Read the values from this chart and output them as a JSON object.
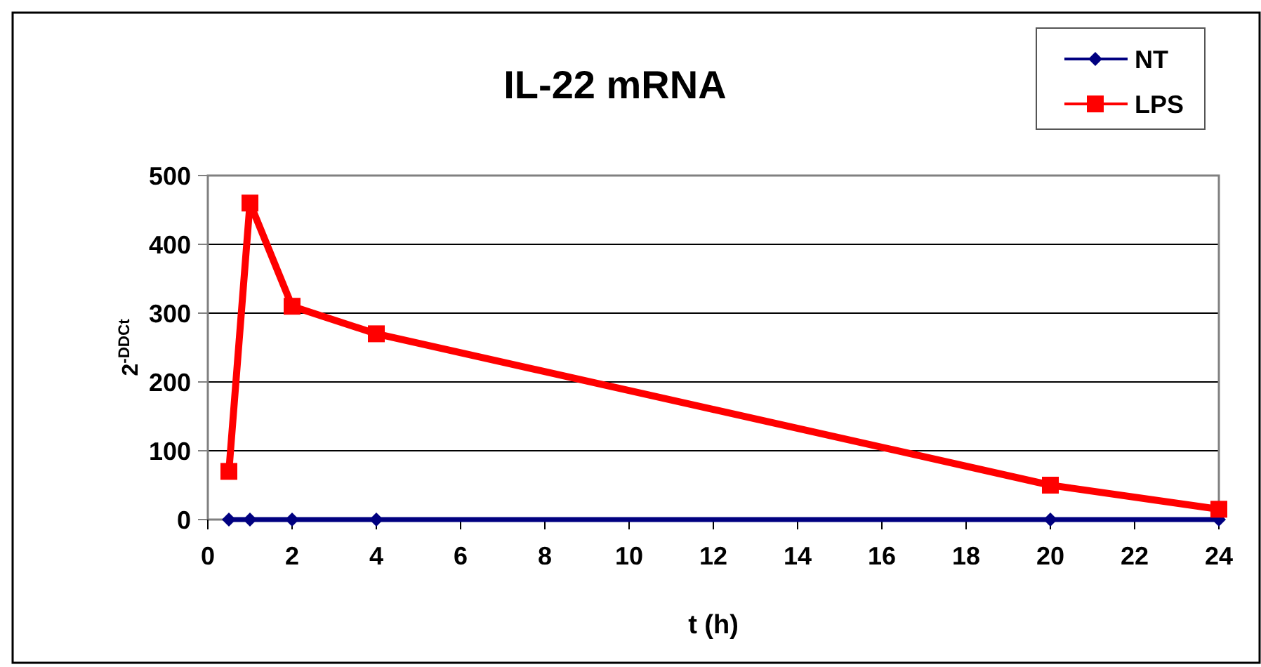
{
  "chart_data": {
    "type": "line",
    "title": "IL-22 mRNA",
    "xlabel": "t (h)",
    "ylabel": "2$^{-DDCt}$",
    "xlim": [
      0,
      24
    ],
    "xticks": [
      0,
      2,
      4,
      6,
      8,
      10,
      12,
      14,
      16,
      18,
      20,
      22,
      24
    ],
    "ylim": [
      0,
      500
    ],
    "yticks": [
      0,
      100,
      200,
      300,
      400,
      500
    ],
    "grid": "y",
    "legend": "top right",
    "series": [
      {
        "name": "NT",
        "color": "#000080",
        "marker": "diamond",
        "x": [
          0.5,
          1,
          2,
          4,
          20,
          24
        ],
        "values": [
          0,
          0,
          0,
          0,
          0,
          0
        ]
      },
      {
        "name": "LPS",
        "color": "#ff0000",
        "marker": "square",
        "x": [
          0.5,
          1,
          2,
          4,
          20,
          24
        ],
        "values": [
          70,
          460,
          310,
          270,
          50,
          15
        ]
      }
    ]
  }
}
